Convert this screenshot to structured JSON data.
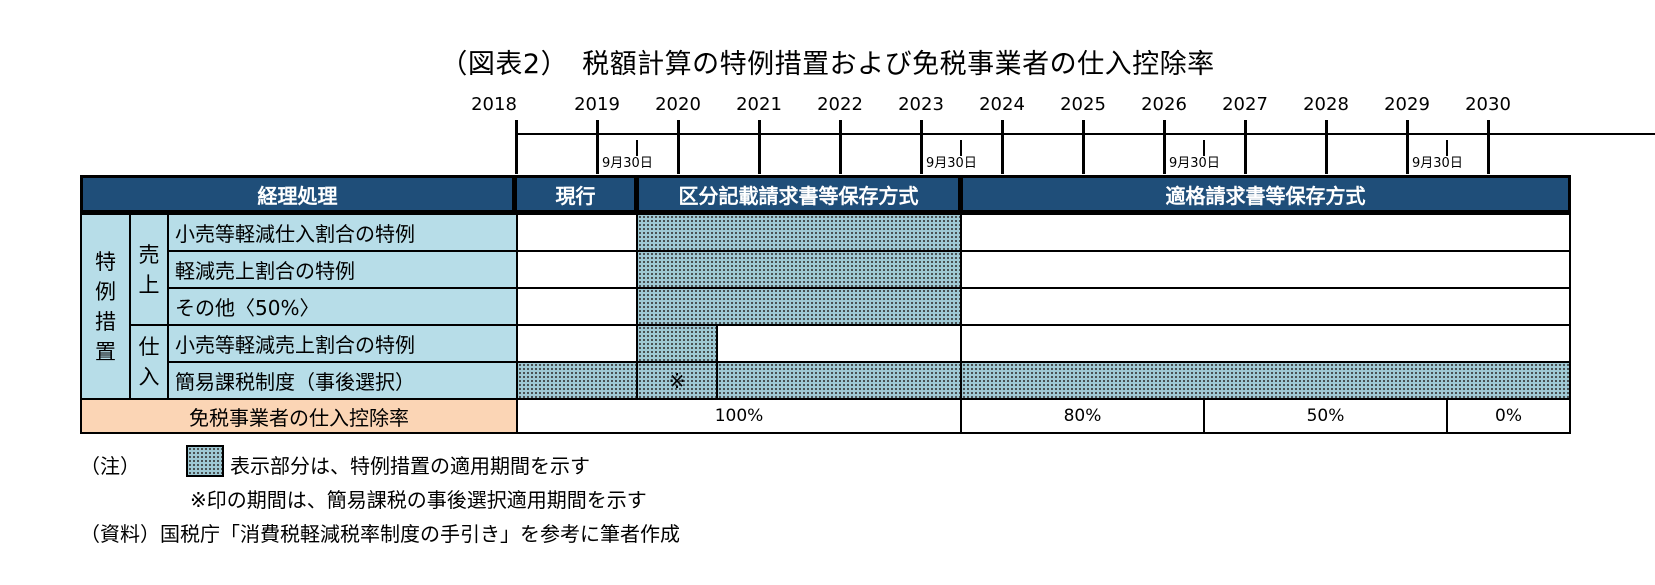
{
  "title": "（図表2）　税額計算の特例措置および免税事業者の仕入控除率",
  "timeline": {
    "years": [
      "2018",
      "2019",
      "2020",
      "2021",
      "2022",
      "2023",
      "2024",
      "2025",
      "2026",
      "2027",
      "2028",
      "2029",
      "2030"
    ],
    "date_markers": [
      "9月30日",
      "9月30日",
      "9月30日",
      "9月30日"
    ]
  },
  "headers": {
    "accounting": "経理処理",
    "current": "現行",
    "kubun": "区分記載請求書等保存方式",
    "tekikaku": "適格請求書等保存方式"
  },
  "group_labels": {
    "special": "特例措置",
    "sales": "売上",
    "purchase": "仕入"
  },
  "rows": [
    {
      "label": "小売等軽減仕入割合の特例"
    },
    {
      "label": "軽減売上割合の特例"
    },
    {
      "label": "その他〈50%〉"
    },
    {
      "label": "小売等軽減売上割合の特例"
    },
    {
      "label": "簡易課税制度（事後選択）"
    }
  ],
  "kome_mark": "※",
  "exempt": {
    "label": "免税事業者の仕入控除率",
    "rates": [
      "100%",
      "80%",
      "50%",
      "0%"
    ]
  },
  "notes": {
    "note_label": "（注）",
    "legend_text": "表示部分は、特例措置の適用期間を示す",
    "kome_text": "※印の期間は、簡易課税の事後選択適用期間を示す",
    "source": "（資料）国税庁「消費税軽減税率制度の手引き」を参考に筆者作成"
  },
  "colors": {
    "header_bg": "#1f4e79",
    "label_bg": "#b7dde8",
    "exempt_label_bg": "#fbd5b5",
    "shade": "#9fc9d4"
  }
}
